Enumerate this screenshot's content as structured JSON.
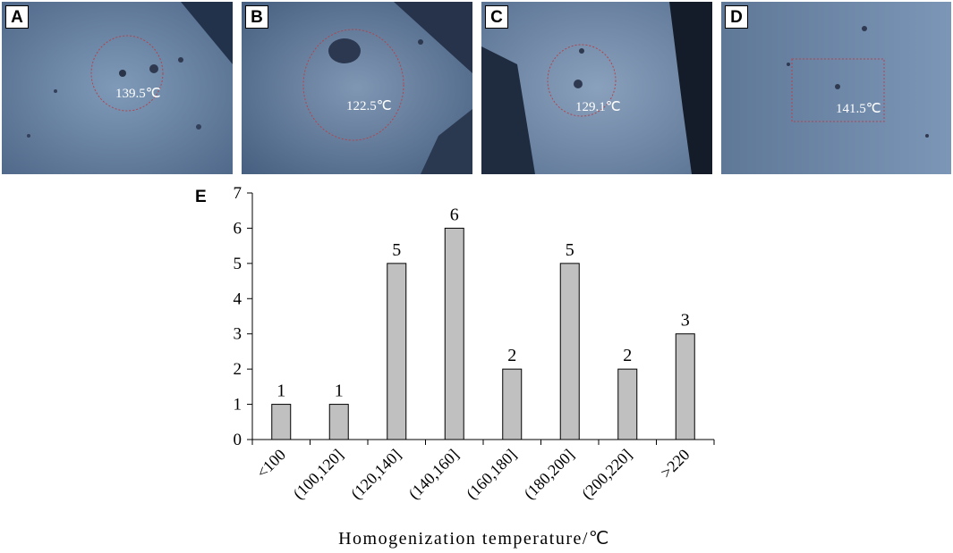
{
  "panels": [
    {
      "letter": "A",
      "temperature": "139.5℃"
    },
    {
      "letter": "B",
      "temperature": "122.5℃"
    },
    {
      "letter": "C",
      "temperature": "129.1℃"
    },
    {
      "letter": "D",
      "temperature": "141.5℃"
    }
  ],
  "chart_panel_letter": "E",
  "chart_data": {
    "type": "bar",
    "categories": [
      "<100",
      "(100,120]",
      "(120,140]",
      "(140,160]",
      "(160,180]",
      "(180,200]",
      "(200,220]",
      ">220"
    ],
    "values": [
      1,
      1,
      5,
      6,
      2,
      5,
      2,
      3
    ],
    "xlabel": "Homogenization temperature/℃",
    "ylabel": "",
    "ylim": [
      0,
      7
    ],
    "yticks": [
      "0",
      "1",
      "2",
      "3",
      "4",
      "5",
      "6",
      "7"
    ],
    "grid": false,
    "bar_color": "#c0c0c0"
  }
}
